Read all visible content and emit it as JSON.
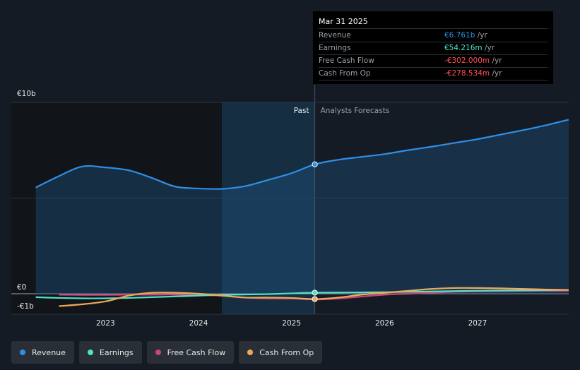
{
  "tooltip": {
    "date": "Mar 31 2025",
    "rows": [
      {
        "label": "Revenue",
        "value": "€6.761b",
        "unit": "/yr",
        "color": "#2e8fe6"
      },
      {
        "label": "Earnings",
        "value": "€54.216m",
        "unit": "/yr",
        "color": "#4ee3c8"
      },
      {
        "label": "Free Cash Flow",
        "value": "-€302.000m",
        "unit": "/yr",
        "color": "#ff4f4f"
      },
      {
        "label": "Cash From Op",
        "value": "-€278.534m",
        "unit": "/yr",
        "color": "#ff4f4f"
      }
    ]
  },
  "chart_data": {
    "type": "line",
    "x_label_ticks": [
      "2023",
      "2024",
      "2025",
      "2026",
      "2027"
    ],
    "y_labels": [
      "€10b",
      "€0",
      "-€1b"
    ],
    "ylim": [
      -1,
      10
    ],
    "xlim": [
      2022.23,
      2027.98
    ],
    "past_label": "Past",
    "forecast_label": "Analysts Forecasts",
    "divider_x": 2025.25,
    "series": [
      {
        "name": "Revenue",
        "color": "#2e8fe6",
        "x": [
          2022.25,
          2022.5,
          2022.75,
          2023.0,
          2023.25,
          2023.5,
          2023.75,
          2024.0,
          2024.25,
          2024.5,
          2024.75,
          2025.0,
          2025.25,
          2025.5,
          2025.75,
          2026.0,
          2026.25,
          2026.5,
          2026.75,
          2027.0,
          2027.25,
          2027.5,
          2027.75,
          2027.98
        ],
        "y": [
          5.55,
          6.15,
          6.65,
          6.6,
          6.45,
          6.05,
          5.6,
          5.5,
          5.48,
          5.62,
          5.95,
          6.3,
          6.761,
          7.0,
          7.15,
          7.3,
          7.5,
          7.68,
          7.88,
          8.08,
          8.32,
          8.56,
          8.82,
          9.1
        ]
      },
      {
        "name": "Earnings",
        "color": "#4ee3c8",
        "x": [
          2022.25,
          2022.5,
          2022.75,
          2023.0,
          2023.25,
          2023.5,
          2023.75,
          2024.0,
          2024.25,
          2024.5,
          2024.75,
          2025.0,
          2025.25,
          2025.5,
          2025.75,
          2026.0,
          2026.25,
          2026.5,
          2026.75,
          2027.0,
          2027.25,
          2027.5,
          2027.75,
          2027.98
        ],
        "y": [
          -0.18,
          -0.22,
          -0.24,
          -0.24,
          -0.22,
          -0.18,
          -0.14,
          -0.1,
          -0.06,
          -0.04,
          -0.02,
          0.02,
          0.054,
          0.06,
          0.07,
          0.08,
          0.1,
          0.12,
          0.14,
          0.16,
          0.17,
          0.18,
          0.19,
          0.2
        ]
      },
      {
        "name": "Free Cash Flow",
        "color": "#c8457c",
        "x": [
          2022.5,
          2022.75,
          2023.0,
          2023.25,
          2023.5,
          2023.75,
          2024.0,
          2024.25,
          2024.5,
          2024.75,
          2025.0,
          2025.25,
          2025.5,
          2025.75,
          2026.0,
          2026.25,
          2026.5,
          2026.75,
          2027.0,
          2027.25,
          2027.5,
          2027.75,
          2027.98
        ],
        "y": [
          -0.05,
          -0.06,
          -0.06,
          -0.05,
          -0.05,
          -0.05,
          -0.06,
          -0.1,
          -0.2,
          -0.25,
          -0.25,
          -0.302,
          -0.25,
          -0.15,
          -0.05,
          0.0,
          0.05,
          0.1,
          0.12,
          0.13,
          0.14,
          0.15,
          0.16
        ]
      },
      {
        "name": "Cash From Op",
        "color": "#f0a85a",
        "x": [
          2022.5,
          2022.75,
          2023.0,
          2023.25,
          2023.5,
          2023.75,
          2024.0,
          2024.25,
          2024.5,
          2024.75,
          2025.0,
          2025.25,
          2025.5,
          2025.75,
          2026.0,
          2026.25,
          2026.5,
          2026.75,
          2027.0,
          2027.25,
          2027.5,
          2027.75,
          2027.98
        ],
        "y": [
          -0.65,
          -0.55,
          -0.4,
          -0.1,
          0.05,
          0.05,
          0.0,
          -0.1,
          -0.2,
          -0.2,
          -0.22,
          -0.279,
          -0.2,
          -0.05,
          0.05,
          0.15,
          0.25,
          0.3,
          0.3,
          0.28,
          0.25,
          0.22,
          0.2
        ]
      }
    ],
    "legend_placement": "bottom"
  },
  "legend": [
    {
      "label": "Revenue",
      "color": "#2e8fe6"
    },
    {
      "label": "Earnings",
      "color": "#4ee3c8"
    },
    {
      "label": "Free Cash Flow",
      "color": "#c8457c"
    },
    {
      "label": "Cash From Op",
      "color": "#f0a85a"
    }
  ]
}
